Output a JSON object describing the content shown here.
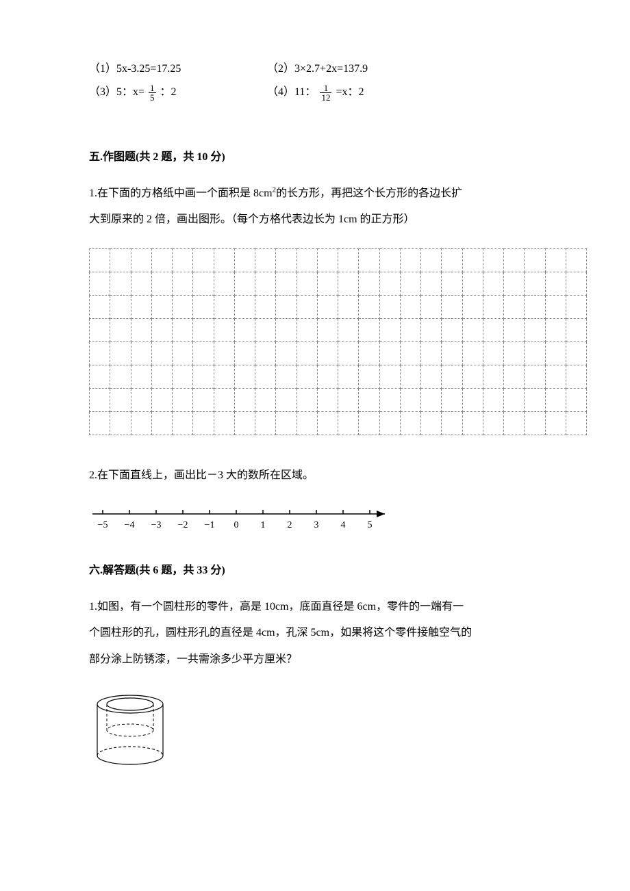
{
  "equations": {
    "row1": {
      "eq1_prefix": "（1）",
      "eq1_expr": "5x-3.25=17.25",
      "eq2_prefix": "（2）",
      "eq2_expr": "3×2.7+2x=137.9"
    },
    "row2": {
      "eq3_prefix": "（3）",
      "eq3_pre": "5：x= ",
      "eq3_frac_num": "1",
      "eq3_frac_den": "5",
      "eq3_post": " ：2",
      "eq4_prefix": "（4）",
      "eq4_pre": "11： ",
      "eq4_frac_num": "1",
      "eq4_frac_den": "12",
      "eq4_post": " =x：2"
    }
  },
  "section5": {
    "title": "五.作图题(共 2 题，共 10 分)",
    "q1_line1": "1.在下面的方格纸中画一个面积是 8cm",
    "q1_sup": "2",
    "q1_line1_tail": "的长方形，再把这个长方形的各边长扩",
    "q1_line2": "大到原来的 2 倍，画出图形。（每个方格代表边长为 1cm 的正方形）",
    "grid": {
      "cols": 24,
      "rows": 8
    },
    "q2": "2.在下面直线上，画出比－3 大的数所在区域。"
  },
  "number_line": {
    "min": -5,
    "max": 5,
    "ticks": [
      -5,
      -4,
      -3,
      -2,
      -1,
      0,
      1,
      2,
      3,
      4,
      5
    ],
    "label_fontsize": 14,
    "stroke": "#000"
  },
  "section6": {
    "title": "六.解答题(共 6 题，共 33 分)",
    "q1_line1": "1.如图，有一个圆柱形的零件，高是 10cm，底面直径是 6cm，零件的一端有一",
    "q1_line2": "个圆柱形的孔，圆柱形孔的直径是 4cm，孔深 5cm，如果将这个零件接触空气的",
    "q1_line3": "部分涂上防锈漆，一共需涂多少平方厘米？"
  },
  "cylinder": {
    "outer_rx": 48,
    "outer_ry": 13,
    "inner_rx": 34,
    "inner_ry": 9,
    "height": 75,
    "stroke": "#000",
    "stroke_width": 1.2
  }
}
